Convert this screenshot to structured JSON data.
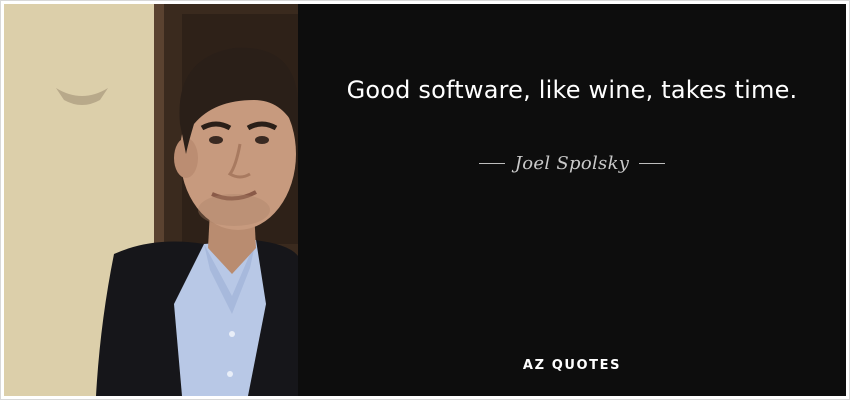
{
  "quote": {
    "text": "Good software, like wine, takes time.",
    "author": "Joel Spolsky"
  },
  "brand": {
    "logo_text": "AZ QUOTES"
  },
  "photo": {
    "icon": "portrait-photo",
    "colors": {
      "wall": "#d9cba6",
      "door": "#3a2a1e",
      "skin": "#c79a7e",
      "hair": "#2a1f18",
      "jacket": "#16161a",
      "shirt": "#b8c8e6"
    }
  },
  "colors": {
    "background": "#0d0d0d",
    "quote_text": "#ffffff",
    "author_text": "#c9c9c9",
    "frame": "#ffffff"
  }
}
